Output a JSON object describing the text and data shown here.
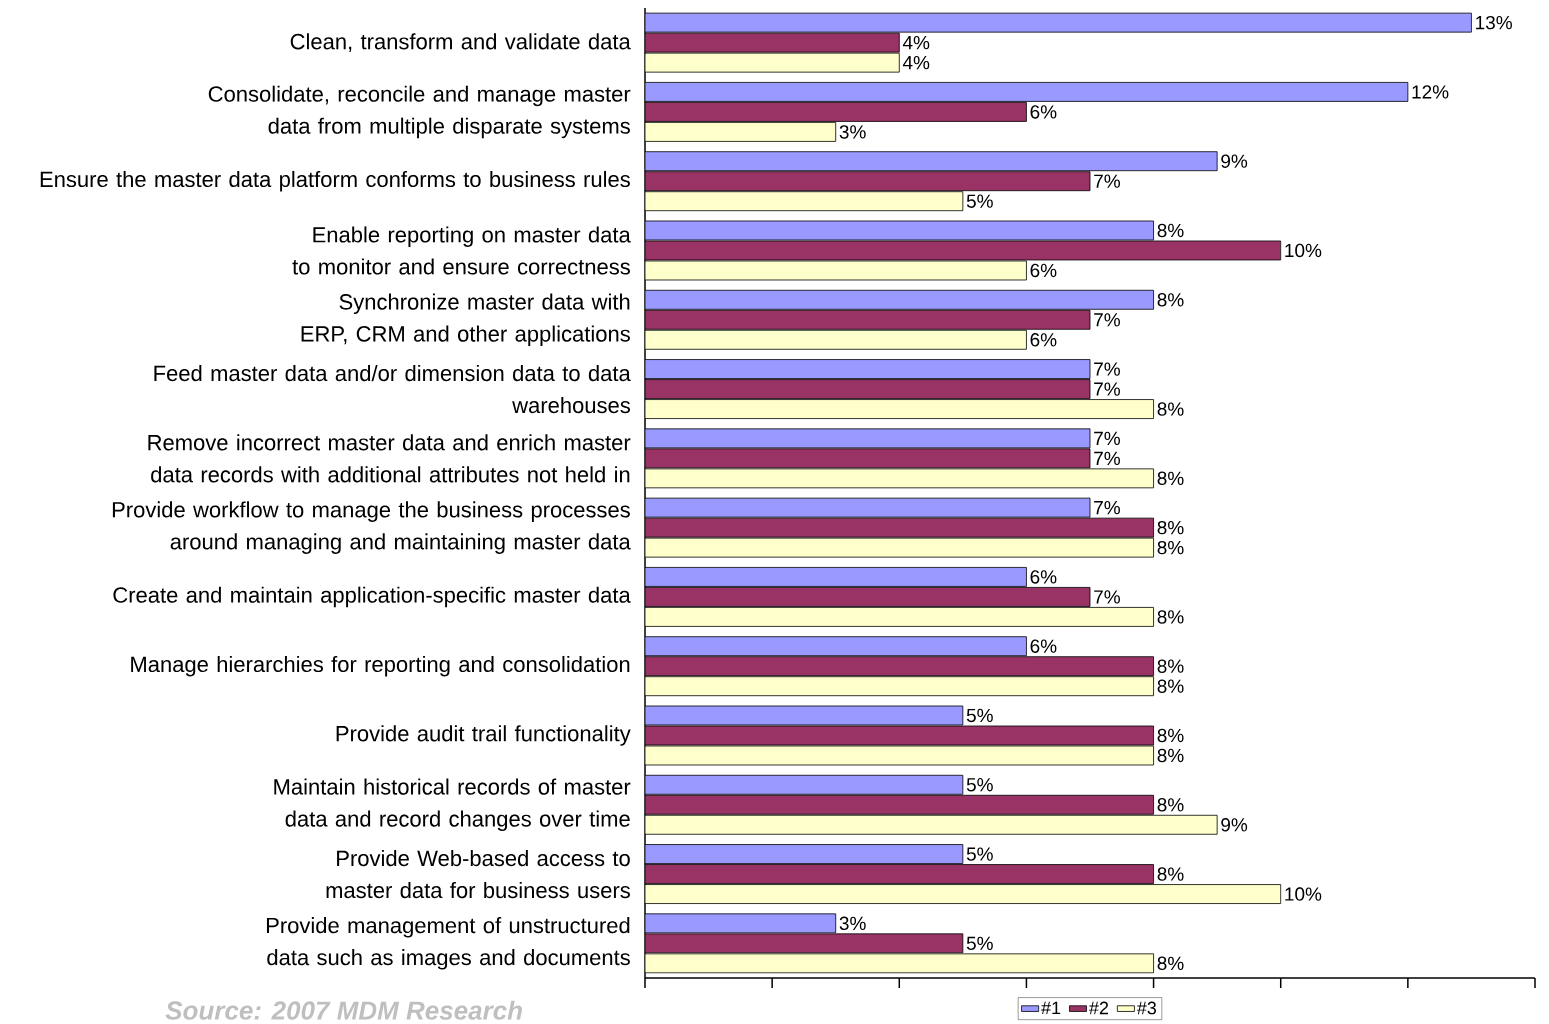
{
  "chart_data": {
    "type": "bar",
    "orientation": "horizontal",
    "categories": [
      "Clean, transform and validate data",
      "Consolidate, reconcile and manage master data from multiple disparate systems",
      "Ensure the master data platform conforms to business rules",
      "Enable reporting on master data to monitor and ensure correctness",
      "Synchronize master data with ERP, CRM and other applications",
      "Feed master data and/or dimension data to data warehouses",
      "Remove incorrect master data and enrich master data records with additional attributes not held in",
      "Provide workflow to manage the business processes around managing and maintaining master data",
      "Create and maintain application-specific master data",
      "Manage hierarchies for reporting and consolidation",
      "Provide audit trail functionality",
      "Maintain historical records of master data and record changes over time",
      "Provide Web-based access to master data for business users",
      "Provide management of unstructured data such as images and documents"
    ],
    "series": [
      {
        "name": "#1",
        "color": "#9999ff",
        "values": [
          13,
          12,
          9,
          8,
          8,
          7,
          7,
          7,
          6,
          6,
          5,
          5,
          5,
          3
        ],
        "value_labels": [
          "13%",
          "12%",
          "9%",
          "8%",
          "8%",
          "7%",
          "7%",
          "7%",
          "6%",
          "6%",
          "5%",
          "5%",
          "5%",
          "3%"
        ]
      },
      {
        "name": "#2",
        "color": "#993366",
        "values": [
          4,
          6,
          7,
          10,
          7,
          7,
          7,
          8,
          7,
          8,
          8,
          8,
          8,
          5
        ],
        "value_labels": [
          "4%",
          "6%",
          "7%",
          "10%",
          "7%",
          "7%",
          "7%",
          "8%",
          "7%",
          "8%",
          "8%",
          "8%",
          "8%",
          "5%"
        ]
      },
      {
        "name": "#3",
        "color": "#ffffcc",
        "values": [
          4,
          3,
          5,
          6,
          6,
          8,
          8,
          8,
          8,
          8,
          8,
          9,
          10,
          8
        ],
        "value_labels": [
          "4%",
          "3%",
          "5%",
          "6%",
          "6%",
          "8%",
          "8%",
          "8%",
          "8%",
          "8%",
          "8%",
          "9%",
          "10%",
          "8%"
        ]
      }
    ],
    "xlim": [
      0,
      14
    ],
    "xticks": [
      {
        "value": 0,
        "label": null
      },
      {
        "value": 2,
        "label": null
      },
      {
        "value": 4,
        "label": null
      },
      {
        "value": 6,
        "label": null
      },
      {
        "value": 8,
        "label": null
      },
      {
        "value": 10,
        "label": null
      },
      {
        "value": 12,
        "label": null
      },
      {
        "value": 14,
        "label": null
      }
    ],
    "tick_labels": "y",
    "legend": "bottom",
    "annotations": [
      "Source: 2007 MDM Research"
    ]
  }
}
